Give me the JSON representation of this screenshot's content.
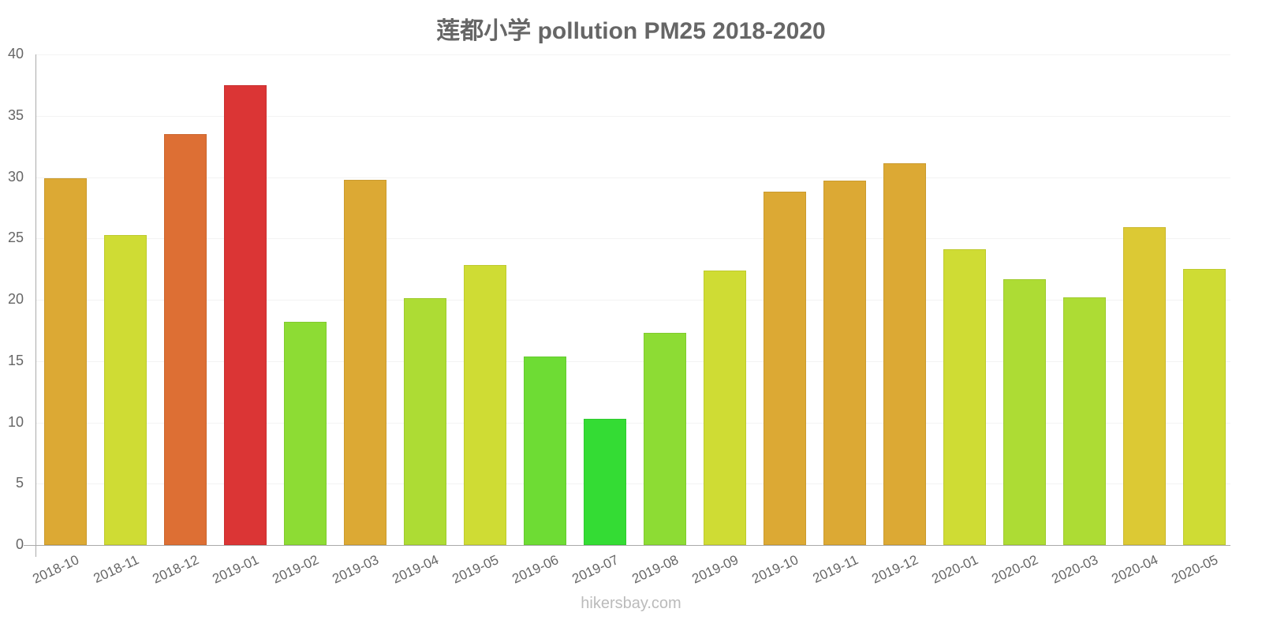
{
  "title": "莲都小学 pollution PM25 2018-2020",
  "watermark": "hikersbay.com",
  "y_ticks": [
    "40",
    "35",
    "30",
    "25",
    "20",
    "15",
    "10",
    "5",
    "0"
  ],
  "chart_data": {
    "type": "bar",
    "title": "莲都小学 pollution PM25 2018-2020",
    "xlabel": "",
    "ylabel": "",
    "ylim": [
      0,
      40
    ],
    "yticks": [
      0,
      5,
      10,
      15,
      20,
      25,
      30,
      35,
      40
    ],
    "grid": true,
    "legend": null,
    "categories": [
      "2018-10",
      "2018-11",
      "2018-12",
      "2019-01",
      "2019-02",
      "2019-03",
      "2019-04",
      "2019-05",
      "2019-06",
      "2019-07",
      "2019-08",
      "2019-09",
      "2019-10",
      "2019-11",
      "2019-12",
      "2020-01",
      "2020-02",
      "2020-03",
      "2020-04",
      "2020-05"
    ],
    "values": [
      29.9,
      25.3,
      33.5,
      37.5,
      18.2,
      29.8,
      20.1,
      22.8,
      15.4,
      10.3,
      17.3,
      22.4,
      28.8,
      29.7,
      31.1,
      24.1,
      21.7,
      20.2,
      25.9,
      22.5
    ],
    "colors": [
      "#dca934",
      "#cfdc34",
      "#dd6f34",
      "#db3535",
      "#8ddc34",
      "#dca934",
      "#addc34",
      "#cfdc34",
      "#6edc34",
      "#34dc34",
      "#8ddc34",
      "#cfdc34",
      "#dca934",
      "#dca934",
      "#dca934",
      "#cfdc34",
      "#addc34",
      "#addc34",
      "#dcc934",
      "#cfdc34"
    ]
  }
}
